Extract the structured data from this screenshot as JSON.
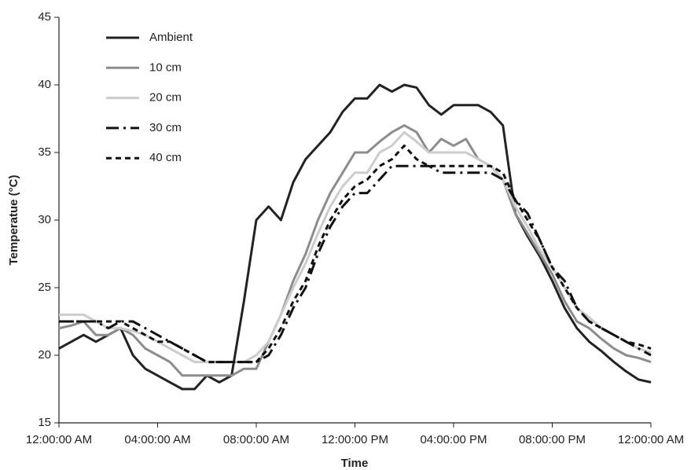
{
  "chart_data": {
    "type": "line",
    "xlabel": "Time",
    "ylabel": "Temperatue (°C)",
    "x": [
      0,
      0.5,
      1,
      1.5,
      2,
      2.5,
      3,
      3.5,
      4,
      4.5,
      5,
      5.5,
      6,
      6.5,
      7,
      7.5,
      8,
      8.5,
      9,
      9.5,
      10,
      10.5,
      11,
      11.5,
      12,
      12.5,
      13,
      13.5,
      14,
      14.5,
      15,
      15.5,
      16,
      16.5,
      17,
      17.5,
      18,
      18.5,
      19,
      19.5,
      20,
      20.5,
      21,
      21.5,
      22,
      22.5,
      23,
      23.5,
      24
    ],
    "xlim": [
      0,
      24
    ],
    "xticks": [
      {
        "value": 0,
        "label": "12:00:00 AM"
      },
      {
        "value": 4,
        "label": "04:00:00 AM"
      },
      {
        "value": 8,
        "label": "08:00:00 AM"
      },
      {
        "value": 12,
        "label": "12:00:00 PM"
      },
      {
        "value": 16,
        "label": "04:00:00 PM"
      },
      {
        "value": 20,
        "label": "08:00:00 PM"
      },
      {
        "value": 24,
        "label": "12:00:00 AM"
      }
    ],
    "ylim": [
      15,
      45
    ],
    "yticks": [
      15,
      20,
      25,
      30,
      35,
      40,
      45
    ],
    "grid": false,
    "legend": "upper left",
    "series": [
      {
        "name": "Ambient",
        "color": "#222222",
        "dash": "none",
        "values": [
          20.5,
          21,
          21.5,
          21,
          21.5,
          22,
          20,
          19,
          18.5,
          18,
          17.5,
          17.5,
          18.5,
          18,
          18.5,
          24,
          30,
          31,
          30,
          32.8,
          34.5,
          35.5,
          36.5,
          38,
          39,
          39,
          40,
          39.5,
          40,
          39.8,
          38.5,
          37.8,
          38.5,
          38.5,
          38.5,
          38,
          37,
          30.5,
          28.8,
          27.3,
          25.5,
          23.5,
          22,
          21,
          20.3,
          19.5,
          18.8,
          18.2,
          18
        ]
      },
      {
        "name": "10 cm",
        "color": "#8c8c8c",
        "dash": "none",
        "values": [
          22,
          22.2,
          22.5,
          21.5,
          21.5,
          22,
          21.5,
          20.5,
          20,
          19.5,
          18.5,
          18.5,
          18.5,
          18.5,
          18.5,
          19,
          19,
          21,
          23,
          25.5,
          27.5,
          30,
          32,
          33.5,
          35,
          35,
          35.8,
          36.5,
          37,
          36.5,
          35,
          36,
          35.5,
          36,
          34.5,
          34,
          33,
          30.5,
          29,
          27.5,
          26,
          24,
          22.5,
          22,
          21.2,
          20.5,
          20,
          19.8,
          19.5
        ]
      },
      {
        "name": "20 cm",
        "color": "#cccccc",
        "dash": "none",
        "values": [
          23,
          23,
          23,
          22.5,
          22,
          22,
          21.8,
          21.5,
          21,
          20.5,
          20,
          19.5,
          19.5,
          19.5,
          19.5,
          19.5,
          20,
          21,
          23,
          25,
          26.8,
          29,
          31,
          32.5,
          33.5,
          33.5,
          35,
          35.5,
          36.5,
          35.8,
          35,
          35,
          35,
          35,
          34.5,
          34,
          33,
          31,
          29.5,
          27.8,
          26.5,
          25,
          23.5,
          22.8,
          22,
          21.5,
          21,
          20.5,
          20.2
        ]
      },
      {
        "name": "30 cm",
        "color": "#111111",
        "dash": "16,6,3,6",
        "values": [
          22.5,
          22.5,
          22.5,
          22.5,
          22,
          22.5,
          22.5,
          22,
          21.5,
          21,
          20.5,
          20,
          19.5,
          19.5,
          19.5,
          19.5,
          19.5,
          20,
          21.5,
          23.5,
          25,
          27.5,
          29.5,
          31,
          32,
          32,
          33,
          34,
          34,
          34,
          34,
          33.5,
          33.5,
          33.5,
          33.5,
          33.5,
          33,
          31.5,
          30.5,
          28.5,
          26.5,
          25.5,
          23.5,
          22.5,
          22,
          21.5,
          21,
          20.5,
          20
        ]
      },
      {
        "name": "40 cm",
        "color": "#111111",
        "dash": "7,5",
        "values": [
          22.5,
          22.5,
          22.5,
          22.5,
          22.5,
          22.5,
          22,
          21.5,
          21,
          21,
          20.5,
          20,
          19.5,
          19.5,
          19.5,
          19.5,
          19.5,
          20.5,
          22,
          24,
          25.5,
          28,
          30,
          31.5,
          32.5,
          33,
          34,
          34.5,
          35.5,
          34.5,
          34,
          34,
          34,
          34,
          34,
          34,
          33.5,
          31.5,
          30,
          28.5,
          26.5,
          25,
          23.5,
          22.5,
          22,
          21.5,
          21,
          20.8,
          20.5
        ]
      }
    ]
  }
}
